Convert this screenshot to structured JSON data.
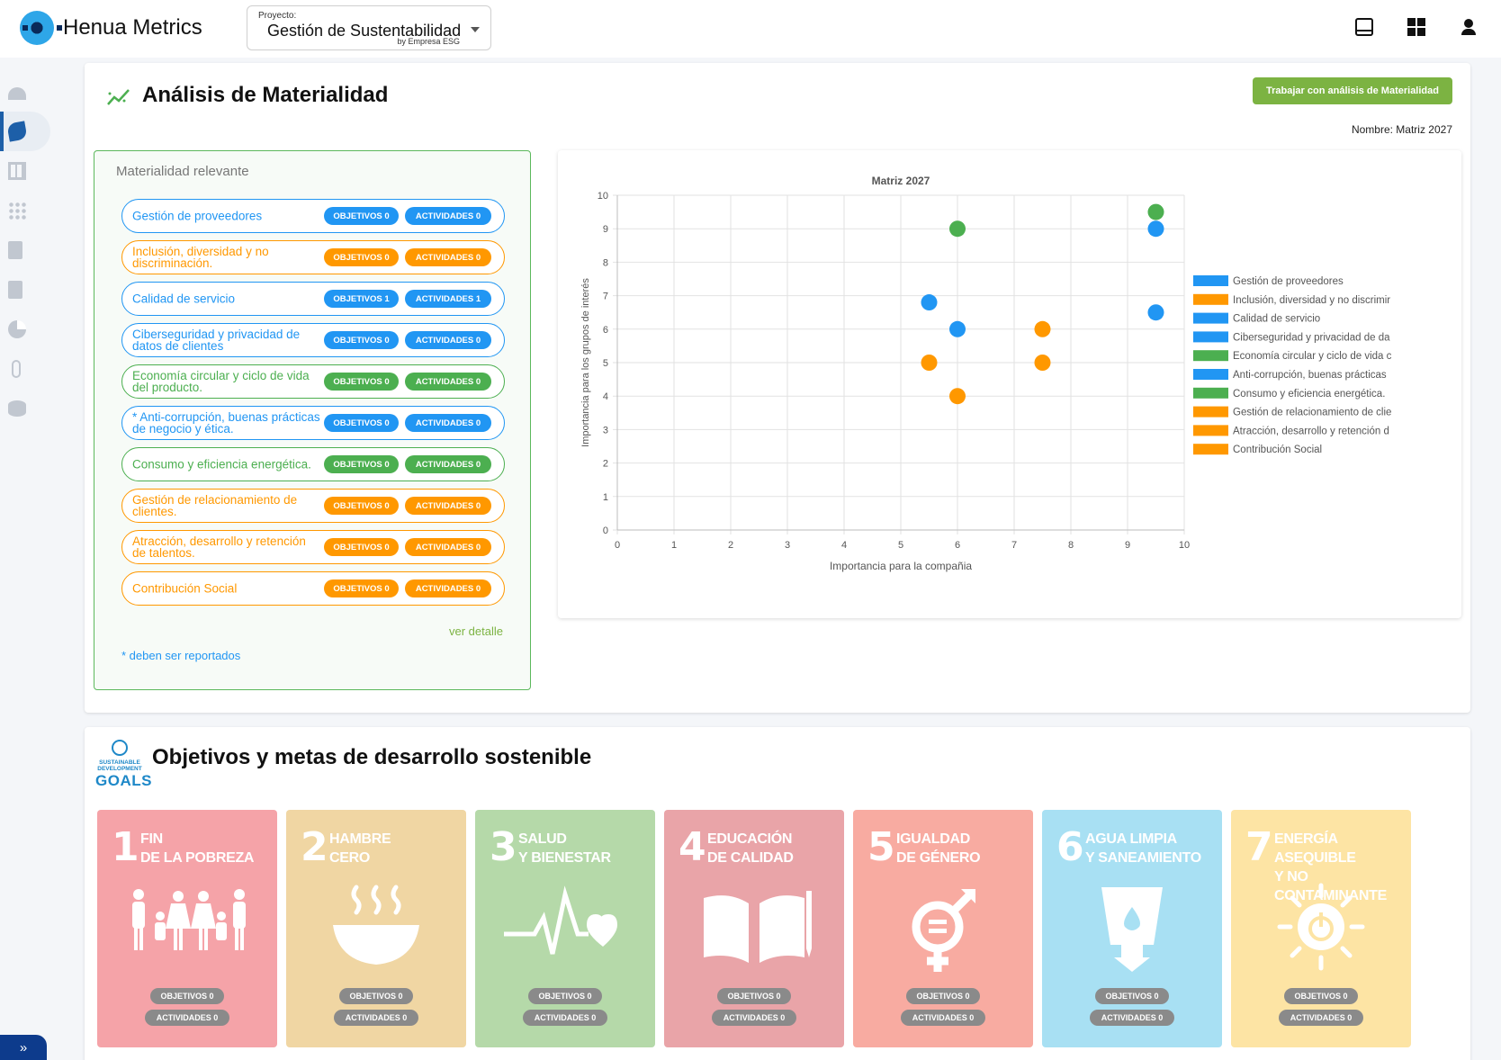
{
  "app": {
    "title": "Henua Metrics"
  },
  "project": {
    "label": "Proyecto:",
    "value": "Gestión de Sustentabilidad",
    "by": "by Empresa ESG"
  },
  "top_icons": [
    "inbox-icon",
    "dashboard-icon",
    "account-icon"
  ],
  "nav": {
    "items": [
      "gauge-icon",
      "leaf-icon",
      "table-icon",
      "apps-icon",
      "document-check-icon",
      "document-icon",
      "pie-chart-icon",
      "attachment-icon",
      "database-icon"
    ],
    "active_index": 1,
    "expand_label": "»"
  },
  "materiality": {
    "title": "Análisis de Materialidad",
    "button_label": "Trabajar con análisis de Materialidad",
    "name_label": "Nombre: Matriz 2027",
    "panel_title": "Materialidad relevante",
    "see_detail": "ver detalle",
    "footnote": "* deben ser reportados",
    "items": [
      {
        "name": "Gestión de proveedores",
        "objetivos": "OBJETIVOS 0",
        "actividades": "ACTIVIDADES 0",
        "color": "blue"
      },
      {
        "name": "Inclusión, diversidad y no discriminación.",
        "objetivos": "OBJETIVOS 0",
        "actividades": "ACTIVIDADES 0",
        "color": "orange"
      },
      {
        "name": "Calidad de servicio",
        "objetivos": "OBJETIVOS 1",
        "actividades": "ACTIVIDADES 1",
        "color": "blue"
      },
      {
        "name": "Ciberseguridad y privacidad de datos de clientes",
        "objetivos": "OBJETIVOS 0",
        "actividades": "ACTIVIDADES 0",
        "color": "blue"
      },
      {
        "name": "Economía circular y ciclo de vida del producto.",
        "objetivos": "OBJETIVOS 0",
        "actividades": "ACTIVIDADES 0",
        "color": "green"
      },
      {
        "name": "* Anti-corrupción, buenas prácticas de negocio y ética.",
        "objetivos": "OBJETIVOS 0",
        "actividades": "ACTIVIDADES 0",
        "color": "blue"
      },
      {
        "name": "Consumo y eficiencia energética.",
        "objetivos": "OBJETIVOS 0",
        "actividades": "ACTIVIDADES 0",
        "color": "green"
      },
      {
        "name": "Gestión de relacionamiento de clientes.",
        "objetivos": "OBJETIVOS 0",
        "actividades": "ACTIVIDADES 0",
        "color": "orange"
      },
      {
        "name": "Atracción, desarrollo y retención de talentos.",
        "objetivos": "OBJETIVOS 0",
        "actividades": "ACTIVIDADES 0",
        "color": "orange"
      },
      {
        "name": "Contribución Social",
        "objetivos": "OBJETIVOS 0",
        "actividades": "ACTIVIDADES 0",
        "color": "orange"
      }
    ]
  },
  "chart_data": {
    "type": "scatter",
    "title": "Matriz 2027",
    "xlabel": "Importancia para la compañia",
    "ylabel": "Importancia para los grupos de interés",
    "xlim": [
      0,
      10
    ],
    "ylim": [
      0,
      10
    ],
    "xticks": [
      "0",
      "1",
      "2",
      "3",
      "4",
      "5",
      "6",
      "7",
      "8",
      "9",
      "10"
    ],
    "yticks": [
      "0",
      "1",
      "2",
      "3",
      "4",
      "5",
      "6",
      "7",
      "8",
      "9",
      "10"
    ],
    "grid": true,
    "legend_position": "right",
    "colors": {
      "blue": "#2196f3",
      "orange": "#ff9800",
      "green": "#4caf50"
    },
    "series": [
      {
        "name": "Gestión de proveedores",
        "legend_text": "Gestión de proveedores",
        "color": "blue",
        "x": 9.5,
        "y": 6.5
      },
      {
        "name": "Inclusión, diversidad y no discriminación.",
        "legend_text": "Inclusión, diversidad y no discrimir",
        "color": "orange",
        "x": 6,
        "y": 4
      },
      {
        "name": "Calidad de servicio",
        "legend_text": "Calidad de servicio",
        "color": "blue",
        "x": 6,
        "y": 6
      },
      {
        "name": "Ciberseguridad y privacidad de datos de clientes",
        "legend_text": "Ciberseguridad y privacidad de da",
        "color": "blue",
        "x": 9.5,
        "y": 9
      },
      {
        "name": "Economía circular y ciclo de vida del producto.",
        "legend_text": "Economía circular y ciclo de vida c",
        "color": "green",
        "x": 9.5,
        "y": 9.5
      },
      {
        "name": "Anti-corrupción, buenas prácticas de negocio y ética.",
        "legend_text": "Anti-corrupción, buenas prácticas",
        "color": "blue",
        "x": 5.5,
        "y": 6.8
      },
      {
        "name": "Consumo y eficiencia energética.",
        "legend_text": "Consumo y eficiencia energética.",
        "color": "green",
        "x": 6,
        "y": 9
      },
      {
        "name": "Gestión de relacionamiento de clientes.",
        "legend_text": "Gestión de relacionamiento de clie",
        "color": "orange",
        "x": 7.5,
        "y": 6
      },
      {
        "name": "Atracción, desarrollo y retención de talentos.",
        "legend_text": "Atracción, desarrollo y retención d",
        "color": "orange",
        "x": 7.5,
        "y": 5
      },
      {
        "name": "Contribución Social",
        "legend_text": "Contribución Social",
        "color": "orange",
        "x": 5.5,
        "y": 5
      }
    ]
  },
  "sdg": {
    "title": "Objetivos y metas de desarrollo sostenible",
    "logo_text": "SUSTAINABLE DEVELOPMENT",
    "logo_word": "GOALS",
    "cards": [
      {
        "num": "1",
        "title": "Fin\nde la pobreza",
        "icon": "family-icon",
        "color": "#f5a3a8",
        "objetivos": "OBJETIVOS 0",
        "actividades": "ACTIVIDADES 0"
      },
      {
        "num": "2",
        "title": "Hambre\ncero",
        "icon": "food-bowl-icon",
        "color": "#f0d6a3",
        "objetivos": "OBJETIVOS 0",
        "actividades": "ACTIVIDADES 0"
      },
      {
        "num": "3",
        "title": "Salud\ny bienestar",
        "icon": "heartbeat-icon",
        "color": "#b5d9a9",
        "objetivos": "OBJETIVOS 0",
        "actividades": "ACTIVIDADES 0"
      },
      {
        "num": "4",
        "title": "Educación\nde calidad",
        "icon": "book-icon",
        "color": "#e9a4a8",
        "objetivos": "OBJETIVOS 0",
        "actividades": "ACTIVIDADES 0"
      },
      {
        "num": "5",
        "title": "Igualdad\nde género",
        "icon": "gender-equality-icon",
        "color": "#f8aba1",
        "objetivos": "OBJETIVOS 0",
        "actividades": "ACTIVIDADES 0"
      },
      {
        "num": "6",
        "title": "Agua limpia\ny saneamiento",
        "icon": "water-glass-icon",
        "color": "#a8e0f3",
        "objetivos": "OBJETIVOS 0",
        "actividades": "ACTIVIDADES 0"
      },
      {
        "num": "7",
        "title": "Energía asequible\ny no contaminante",
        "icon": "sun-power-icon",
        "color": "#fde4a4",
        "objetivos": "OBJETIVOS 0",
        "actividades": "ACTIVIDADES 0"
      }
    ]
  }
}
